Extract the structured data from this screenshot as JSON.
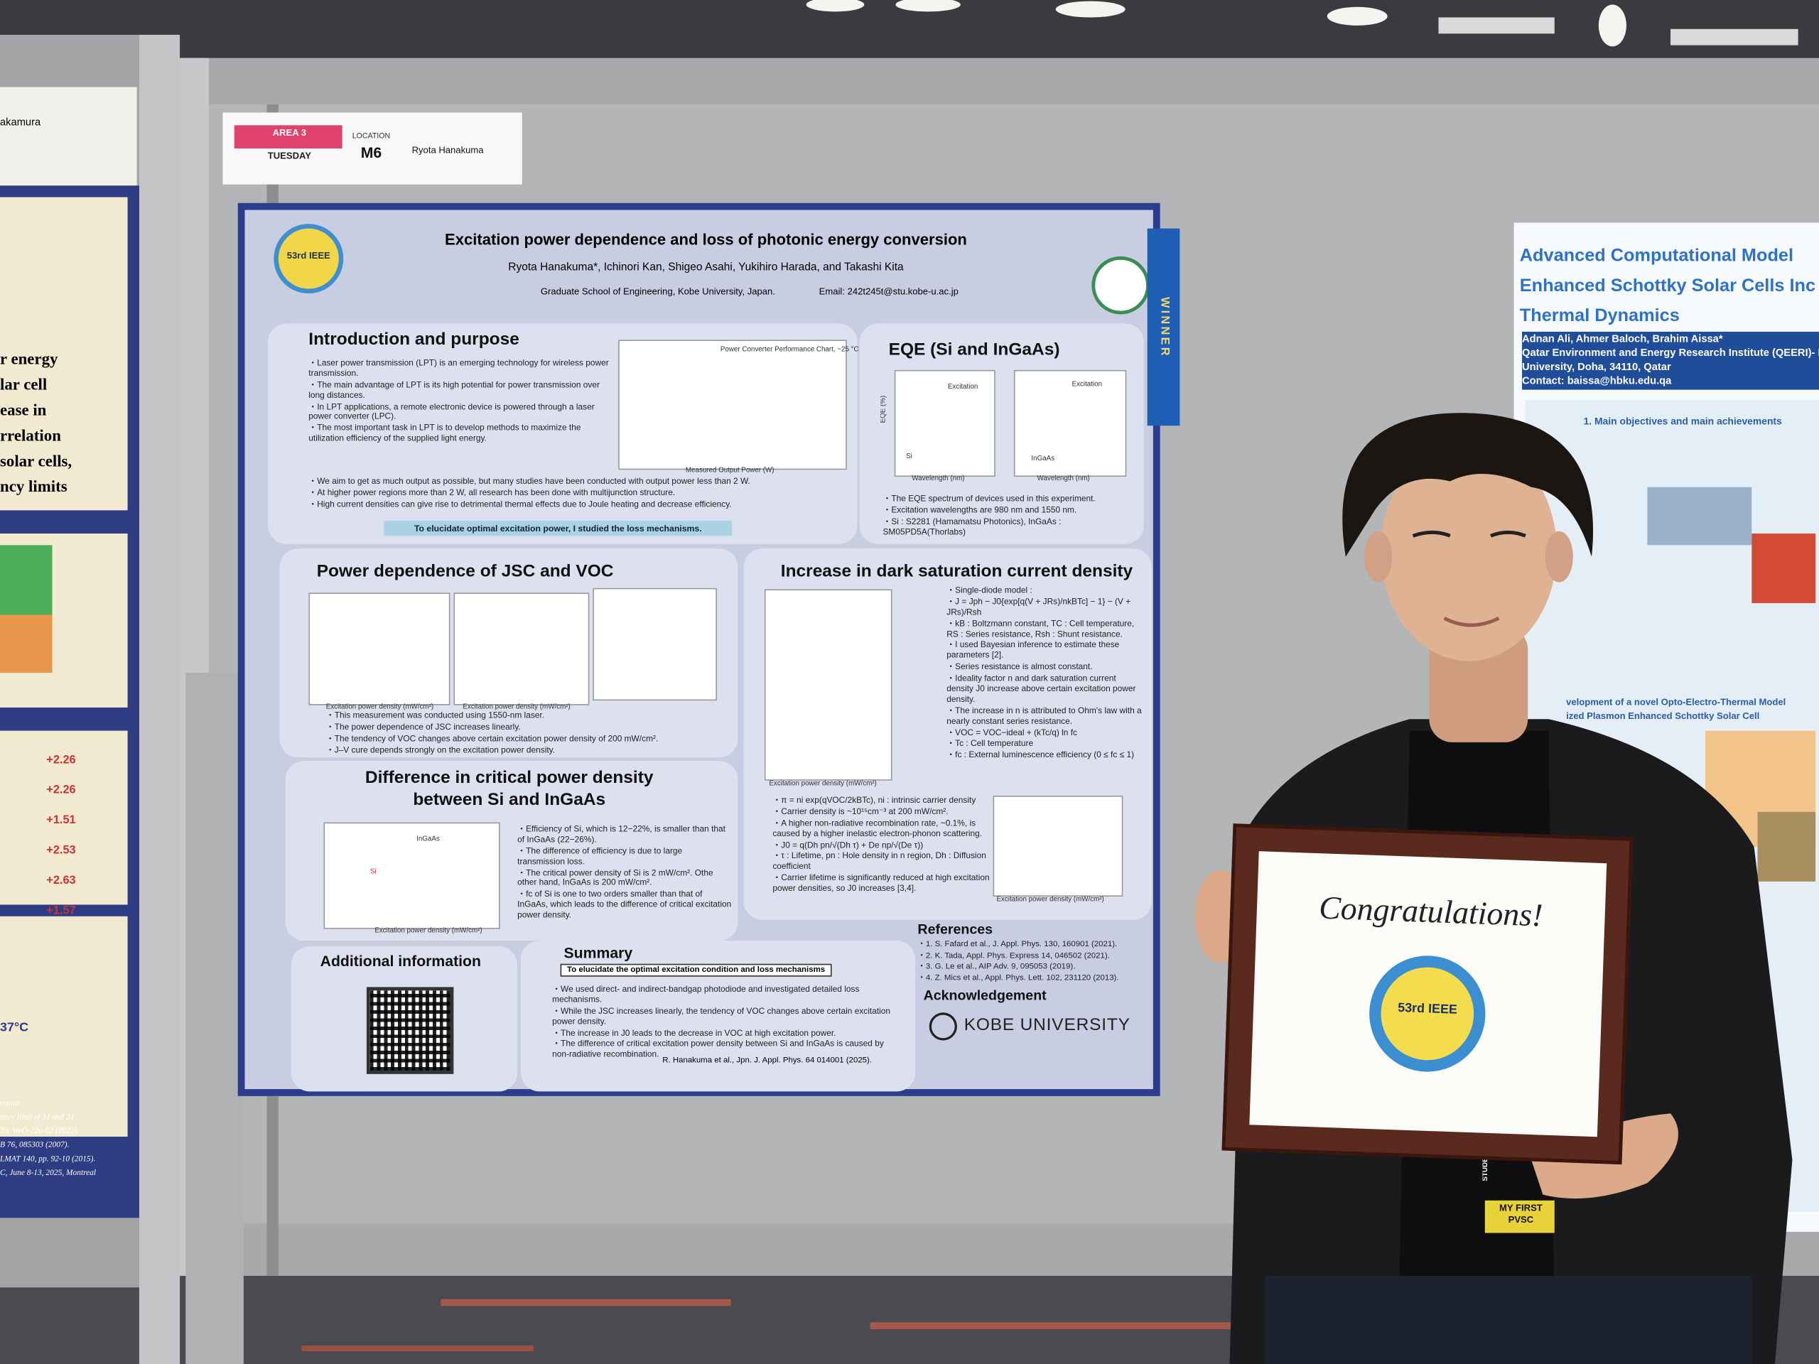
{
  "area_label": {
    "area": "AREA 3",
    "day": "TUESDAY",
    "location_label": "LOCATION",
    "location": "M6",
    "name": "Ryota Hanakuma"
  },
  "poster": {
    "title": "Excitation power dependence and loss of photonic energy conversion",
    "authors": "Ryota Hanakuma*, Ichinori Kan, Shigeo Asahi, Yukihiro Harada, and Takashi Kita",
    "affiliation": "Graduate School of Engineering, Kobe University, Japan.",
    "email": "Email: 242t245t@stu.kobe-u.ac.jp",
    "badge": "53rd IEEE",
    "ribbon": "WINNER",
    "logo": "KOBE UNIVERSITY",
    "intro": {
      "heading": "Introduction and purpose",
      "bullets": [
        "Laser power transmission (LPT) is an emerging technology for wireless power transmission.",
        "The main advantage of LPT is its high potential for power transmission over long distances.",
        "In LPT applications, a remote electronic device is powered through a laser power converter (LPC).",
        "The most important task in LPT is to develop methods to maximize the utilization efficiency of the supplied light energy."
      ],
      "bullets2": [
        "We aim to get as much output as possible, but many studies have been conducted with output power less than 2 W.",
        "At higher power regions more than 2 W, all research has been done with multijunction structure.",
        "High current densities can give rise to detrimental thermal effects due to Joule heating and decrease efficiency."
      ],
      "highlight": "To elucidate optimal excitation power, I studied the loss mechanisms.",
      "chart_title": "Power Converter Performance Chart, ~25 °C",
      "chart_xlabel": "Measured Output Power (W)"
    },
    "eqe": {
      "heading": "EQE (Si and InGaAs)",
      "excitation": "Excitation",
      "si": "Si",
      "ingaas": "InGaAs",
      "xlabel": "Wavelength (nm)",
      "ylabel": "EQE (%)",
      "bullets": [
        "The EQE spectrum of devices used in this experiment.",
        "Excitation wavelengths are 980 nm and 1550 nm.",
        "Si : S2281 (Hamamatsu Photonics), InGaAs : SM05PD5A(Thorlabs)"
      ]
    },
    "power": {
      "heading": "Power dependence of JSC and VOC",
      "xlabel": "Excitation power density (mW/cm²)",
      "bullets": [
        "This measurement was conducted using 1550-nm laser.",
        "The power dependence of JSC increases linearly.",
        "The tendency of VOC changes above certain excitation power density of 200 mW/cm².",
        "J–V cure depends strongly on the excitation power density."
      ]
    },
    "dark": {
      "heading": "Increase in dark saturation current density",
      "items": [
        "Single-diode model :",
        "J = Jph − J0{exp[q(V + JRs)/nkBTc] − 1} − (V + JRs)/Rsh",
        "kB : Boltzmann constant, TC : Cell temperature, RS : Series resistance, Rsh : Shunt resistance.",
        "I used Bayesian inference to estimate these parameters [2].",
        "Series resistance is almost constant.",
        "Ideality factor n and dark saturation current density J0 increase above certain excitation power density.",
        "The increase in n is attributed to Ohm's law with a nearly constant series resistance.",
        "VOC = VOC−ideal + (kTc/q) ln fc",
        "Tc : Cell temperature",
        "fc : External luminescence efficiency (0 ≤ fc ≤ 1)"
      ],
      "items2": [
        "π = ni exp(qVOC/2kBTc), ni : intrinsic carrier density",
        "Carrier density is ~10¹⁵cm⁻³ at 200 mW/cm².",
        "A higher non-radiative recombination rate, ~0.1%, is caused by a higher inelastic electron-phonon scattering.",
        "J0 = q(Dh pn/√(Dh τ) + De np/√(De τ))",
        "τ : Lifetime, pn : Hole density in n region, Dh : Diffusion coefficient",
        "Carrier lifetime is significantly reduced at high excitation power densities, so J0 increases [3,4]."
      ],
      "xlabel": "Excitation power density (mW/cm²)"
    },
    "difference": {
      "heading": "Difference in critical power density between Si and InGaAs",
      "ingaas": "InGaAs",
      "si": "Si",
      "xlabel": "Excitation power density (mW/cm²)",
      "bullets": [
        "Efficiency of Si, which is 12−22%, is smaller than that of InGaAs (22−26%).",
        "The difference of efficiency is due to large transmission loss.",
        "The critical power density of Si is 2 mW/cm². Othe other hand, InGaAs is 200 mW/cm².",
        "fc of Si is one to two orders smaller than that of InGaAs, which leads to the difference of critical excitation power density."
      ]
    },
    "additional": "Additional information",
    "summary": {
      "heading": "Summary",
      "box": "To elucidate the optimal excitation condition and loss mechanisms",
      "bullets": [
        "We used direct- and indirect-bandgap photodiode and investigated detailed loss mechanisms.",
        "While the JSC increases linearly, the tendency of VOC changes above certain excitation power density.",
        "The increase in J0 leads to the decrease in VOC at high excitation power.",
        "The difference of critical excitation power density between Si and InGaAs is caused by non-radiative recombination."
      ],
      "citation": "R. Hanakuma et al., Jpn. J. Appl. Phys. 64 014001 (2025)."
    },
    "references": {
      "heading": "References",
      "items": [
        "1. S. Fafard et al., J. Appl. Phys. 130, 160901 (2021).",
        "2. K. Tada, Appl. Phys. Express 14, 046502 (2021).",
        "3. G. Le et al., AIP Adv. 9, 095053 (2019).",
        "4. Z. Mics et al., Appl. Phys. Lett. 102, 231120 (2013)."
      ]
    },
    "acknowledgement": "Acknowledgement"
  },
  "left_poster": {
    "name": "akamura",
    "lines": [
      "r energy",
      "lar cell",
      "ease in",
      "rrelation",
      "solar cells,",
      "ncy limits"
    ],
    "values": [
      "+2.26",
      "+2.26",
      "+1.51",
      "+2.53",
      "+2.63",
      "+1.57"
    ],
    "temp": "37°C",
    "footer": [
      "eratur",
      "ency limit of 3J and 2J",
      "33, WeO-22a-02 (2022).",
      "B 76, 085303 (2007).",
      "LMAT 140, pp. 92-10 (2015).",
      "C, June 8-13, 2025, Montreal"
    ]
  },
  "right_poster": {
    "title": [
      "Advanced Computational Model",
      "Enhanced Schottky Solar Cells Inc",
      "Thermal Dynamics"
    ],
    "authors": "Adnan Ali, Ahmer Baloch, Brahim Aissa*",
    "affiliation": [
      "Qatar Environment and Energy Research Institute (QEERI)- H",
      "University, Doha, 34110, Qatar",
      "Contact: baissa@hbku.edu.qa"
    ],
    "section": "1. Main objectives and main achievements",
    "subsection": [
      "velopment of a novel Opto-Electro-Thermal Model",
      "ized Plasmon Enhanced Schottky Solar Cell"
    ]
  },
  "plaque": {
    "text": "Congratulations!",
    "badge": "53rd IEEE"
  },
  "lanyard": {
    "role": "STUDENT",
    "text": "MY FIRST PVSC"
  }
}
